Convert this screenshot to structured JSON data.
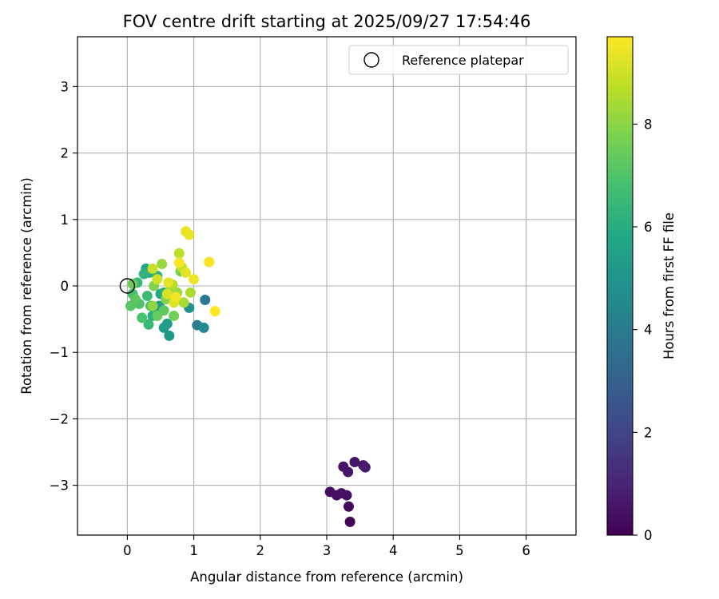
{
  "chart_data": {
    "type": "scatter",
    "title": "FOV centre drift starting at 2025/09/27 17:54:46",
    "xlabel": "Angular distance from reference (arcmin)",
    "ylabel": "Rotation from reference (arcmin)",
    "xlim": [
      -0.75,
      6.75
    ],
    "ylim": [
      -3.75,
      3.75
    ],
    "xticks": [
      0,
      1,
      2,
      3,
      4,
      5,
      6
    ],
    "yticks": [
      -3,
      -2,
      -1,
      0,
      1,
      2,
      3
    ],
    "xtick_labels": [
      "0",
      "1",
      "2",
      "3",
      "4",
      "5",
      "6"
    ],
    "ytick_labels": [
      "−3",
      "−2",
      "−1",
      "0",
      "1",
      "2",
      "3"
    ],
    "grid": true,
    "legend": {
      "placement": "top-right",
      "label": "Reference platepar"
    },
    "reference_point": {
      "x": 0,
      "y": 0
    },
    "colorbar": {
      "label": "Hours from first FF file",
      "range": [
        0,
        9.7
      ],
      "ticks": [
        0,
        2,
        4,
        6,
        8
      ],
      "tick_labels": [
        "0",
        "2",
        "4",
        "6",
        "8"
      ],
      "colormap": "viridis"
    },
    "points": [
      {
        "x": 3.35,
        "y": -3.55,
        "h": 0.1
      },
      {
        "x": 3.33,
        "y": -3.32,
        "h": 0.2
      },
      {
        "x": 3.05,
        "y": -3.1,
        "h": 0.3
      },
      {
        "x": 3.15,
        "y": -3.15,
        "h": 0.35
      },
      {
        "x": 3.22,
        "y": -3.12,
        "h": 0.4
      },
      {
        "x": 3.3,
        "y": -3.15,
        "h": 0.45
      },
      {
        "x": 3.25,
        "y": -2.72,
        "h": 0.5
      },
      {
        "x": 3.32,
        "y": -2.8,
        "h": 0.55
      },
      {
        "x": 3.42,
        "y": -2.65,
        "h": 0.6
      },
      {
        "x": 3.55,
        "y": -2.7,
        "h": 0.65
      },
      {
        "x": 3.58,
        "y": -2.73,
        "h": 0.7
      },
      {
        "x": 1.17,
        "y": -0.21,
        "h": 3.9
      },
      {
        "x": 1.05,
        "y": -0.59,
        "h": 4.1
      },
      {
        "x": 1.15,
        "y": -0.63,
        "h": 4.6
      },
      {
        "x": 0.93,
        "y": -0.33,
        "h": 4.9
      },
      {
        "x": 0.63,
        "y": -0.75,
        "h": 5.2
      },
      {
        "x": 0.55,
        "y": -0.63,
        "h": 5.3
      },
      {
        "x": 0.6,
        "y": -0.57,
        "h": 5.4
      },
      {
        "x": 0.48,
        "y": -0.3,
        "h": 5.5
      },
      {
        "x": 0.42,
        "y": -0.38,
        "h": 5.6
      },
      {
        "x": 0.5,
        "y": -0.12,
        "h": 5.7
      },
      {
        "x": 0.28,
        "y": 0.26,
        "h": 5.8
      },
      {
        "x": 0.33,
        "y": 0.2,
        "h": 5.9
      },
      {
        "x": 0.55,
        "y": -0.1,
        "h": 6.0
      },
      {
        "x": 0.38,
        "y": -0.45,
        "h": 6.1
      },
      {
        "x": 0.45,
        "y": 0.15,
        "h": 6.2
      },
      {
        "x": 0.25,
        "y": 0.18,
        "h": 6.3
      },
      {
        "x": 0.15,
        "y": 0.05,
        "h": 6.4
      },
      {
        "x": 0.32,
        "y": -0.58,
        "h": 6.5
      },
      {
        "x": 0.3,
        "y": -0.15,
        "h": 6.6
      },
      {
        "x": 0.35,
        "y": -0.3,
        "h": 6.7
      },
      {
        "x": 0.08,
        "y": -0.12,
        "h": 6.8
      },
      {
        "x": 0.22,
        "y": -0.48,
        "h": 6.9
      },
      {
        "x": 0.18,
        "y": -0.27,
        "h": 7.0
      },
      {
        "x": 0.05,
        "y": -0.3,
        "h": 7.1
      },
      {
        "x": 0.12,
        "y": -0.2,
        "h": 7.2
      },
      {
        "x": 0.55,
        "y": -0.37,
        "h": 7.3
      },
      {
        "x": 0.45,
        "y": -0.45,
        "h": 7.4
      },
      {
        "x": 0.08,
        "y": 0.03,
        "h": 7.5
      },
      {
        "x": 0.7,
        "y": -0.45,
        "h": 7.6
      },
      {
        "x": 0.8,
        "y": 0.22,
        "h": 7.7
      },
      {
        "x": 0.4,
        "y": 0.0,
        "h": 7.8
      },
      {
        "x": 0.58,
        "y": -0.2,
        "h": 7.9
      },
      {
        "x": 0.65,
        "y": -0.05,
        "h": 8.0
      },
      {
        "x": 0.38,
        "y": -0.3,
        "h": 8.1
      },
      {
        "x": 0.52,
        "y": 0.33,
        "h": 8.2
      },
      {
        "x": 0.75,
        "y": -0.1,
        "h": 8.3
      },
      {
        "x": 0.85,
        "y": -0.25,
        "h": 8.4
      },
      {
        "x": 0.95,
        "y": -0.1,
        "h": 8.5
      },
      {
        "x": 0.68,
        "y": 0.02,
        "h": 8.6
      },
      {
        "x": 0.78,
        "y": 0.49,
        "h": 8.7
      },
      {
        "x": 0.82,
        "y": 0.28,
        "h": 8.8
      },
      {
        "x": 0.38,
        "y": 0.26,
        "h": 8.9
      },
      {
        "x": 0.45,
        "y": 0.1,
        "h": 9.0
      },
      {
        "x": 0.6,
        "y": -0.12,
        "h": 9.1
      },
      {
        "x": 0.7,
        "y": -0.25,
        "h": 9.2
      },
      {
        "x": 0.88,
        "y": 0.2,
        "h": 9.3
      },
      {
        "x": 0.62,
        "y": 0.05,
        "h": 9.3
      },
      {
        "x": 0.88,
        "y": 0.82,
        "h": 9.4
      },
      {
        "x": 0.93,
        "y": 0.77,
        "h": 9.4
      },
      {
        "x": 1.0,
        "y": 0.1,
        "h": 9.5
      },
      {
        "x": 0.73,
        "y": -0.17,
        "h": 9.5
      },
      {
        "x": 0.78,
        "y": 0.35,
        "h": 9.6
      },
      {
        "x": 1.23,
        "y": 0.36,
        "h": 9.6
      },
      {
        "x": 1.32,
        "y": -0.38,
        "h": 9.7
      }
    ]
  }
}
